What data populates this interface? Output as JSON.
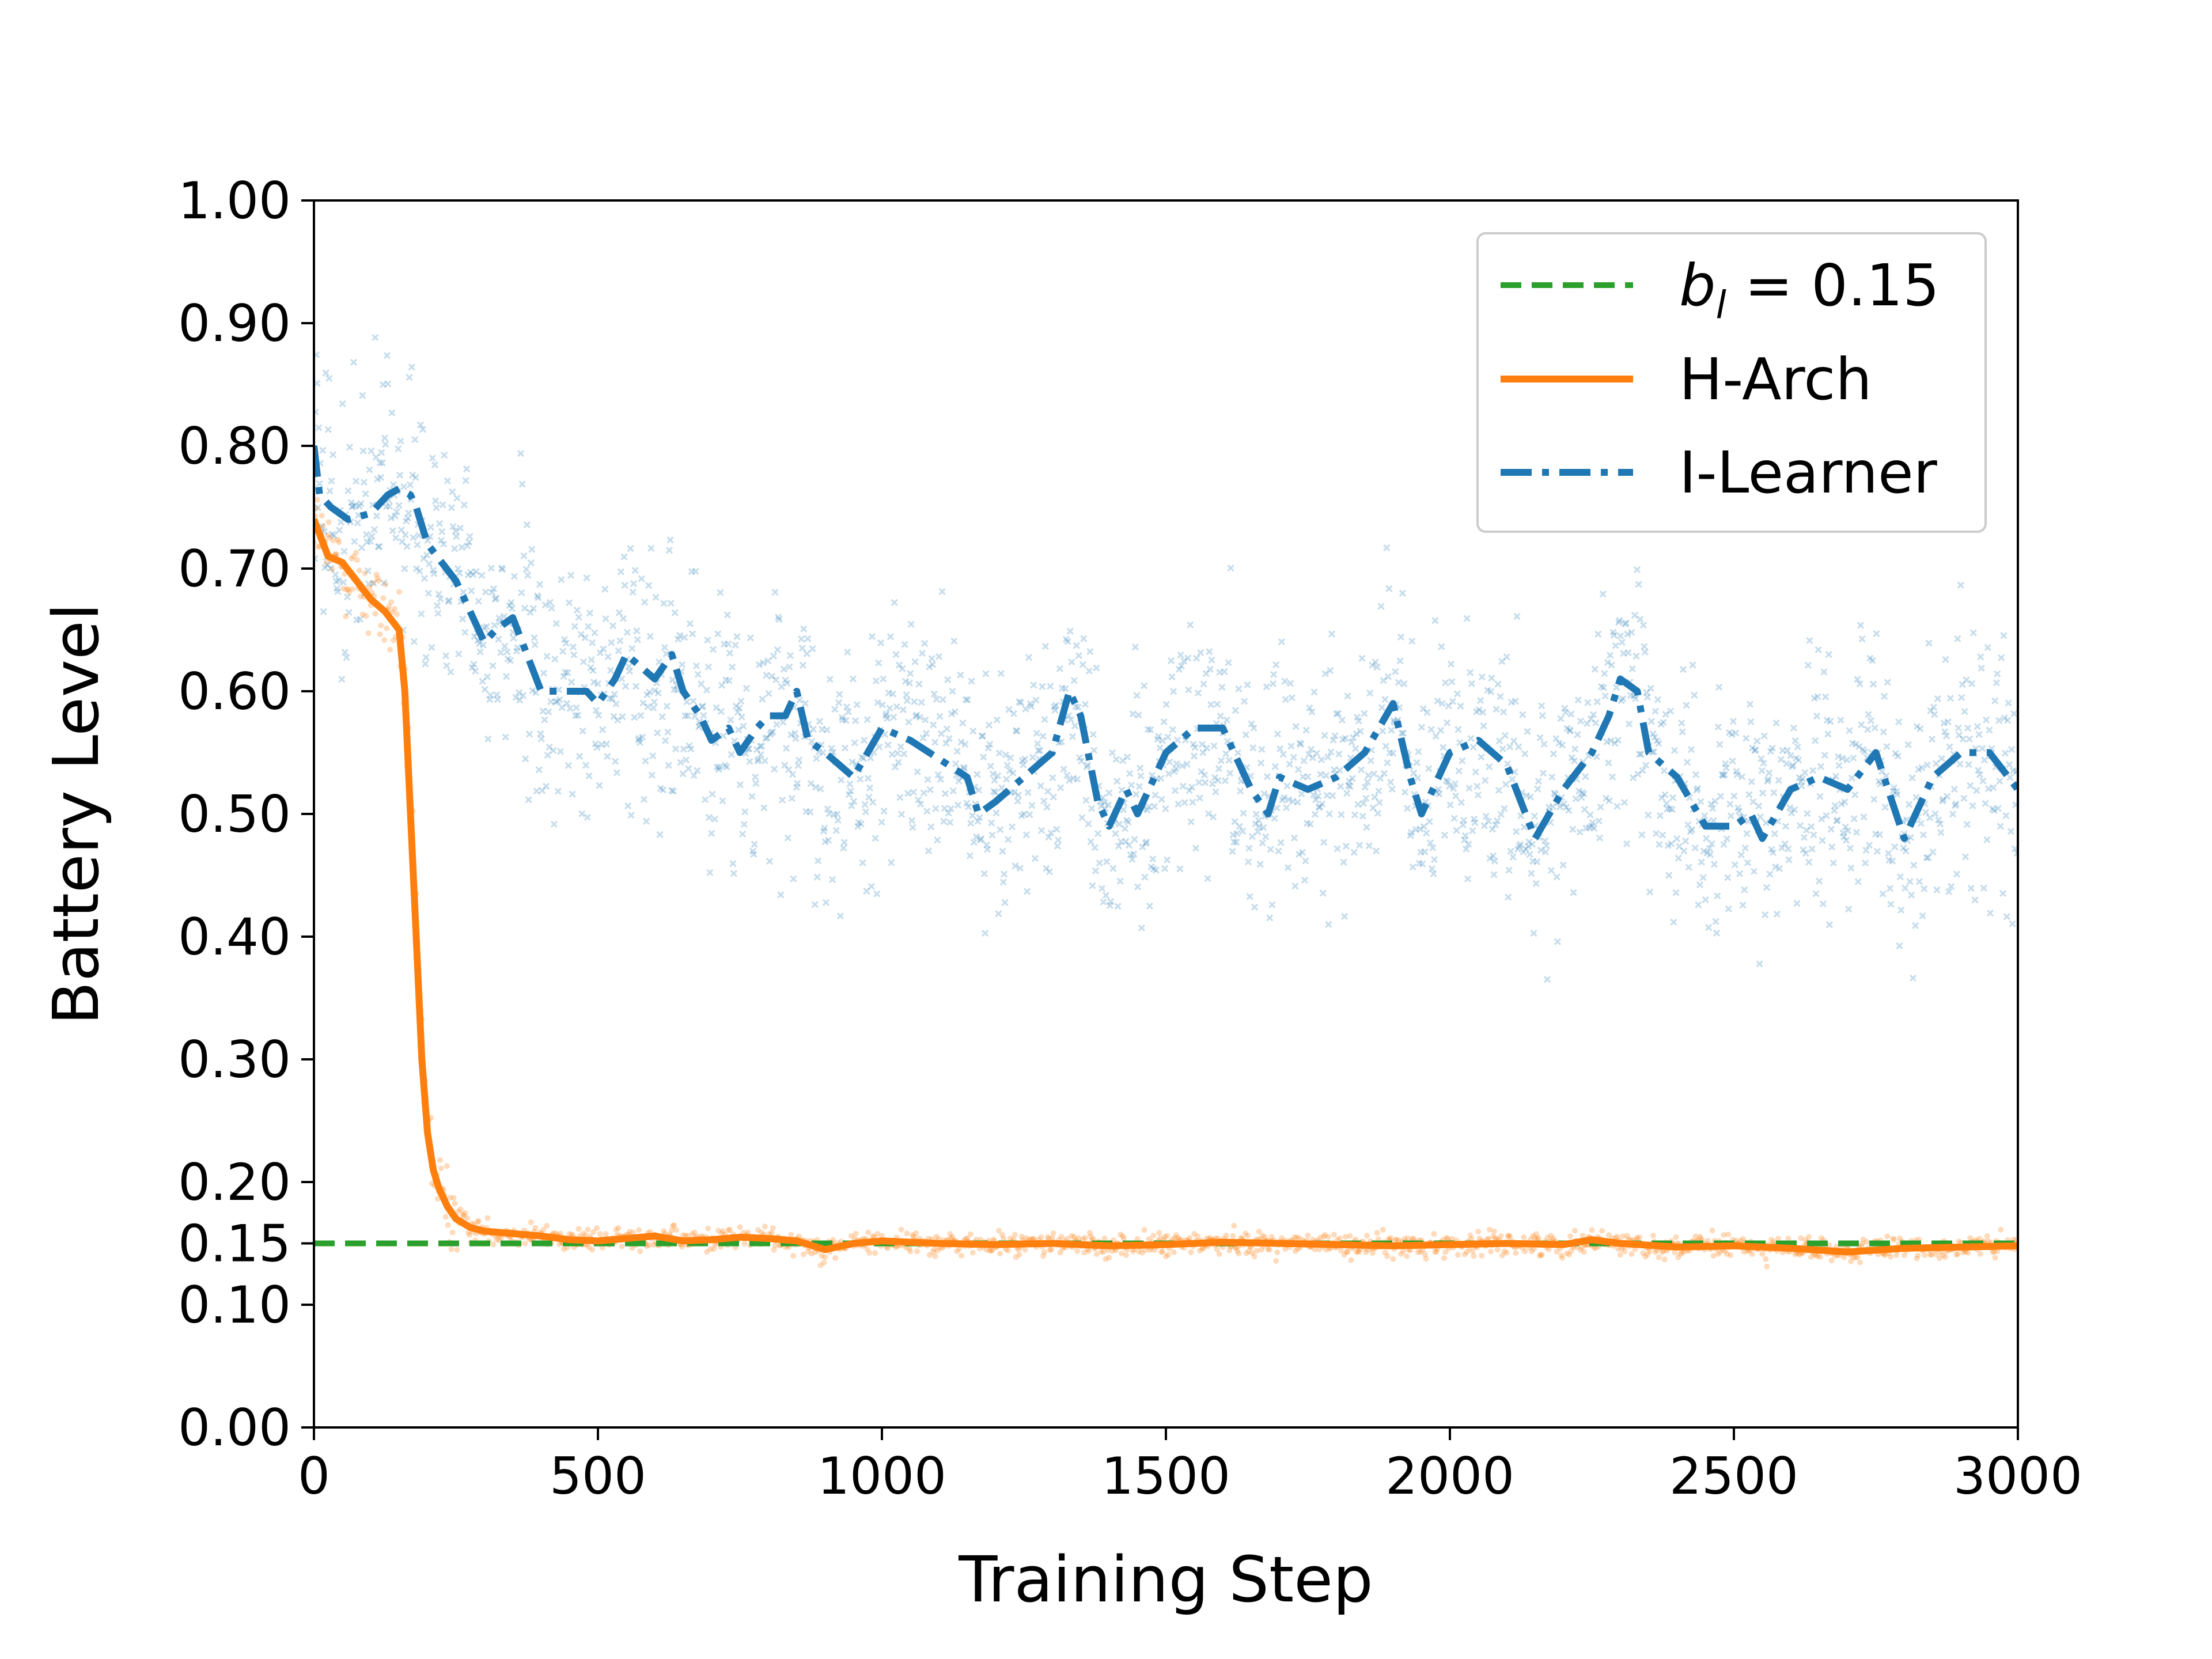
{
  "chart_data": {
    "type": "line",
    "title": "",
    "xlabel": "Training Step",
    "ylabel": "Battery Level",
    "xlim": [
      0,
      3000
    ],
    "ylim": [
      0,
      1.0
    ],
    "xticks": [
      0,
      500,
      1000,
      1500,
      2000,
      2500,
      3000
    ],
    "xtick_labels": [
      "0",
      "500",
      "1000",
      "1500",
      "2000",
      "2500",
      "3000"
    ],
    "yticks": [
      0.0,
      0.1,
      0.15,
      0.2,
      0.3,
      0.4,
      0.5,
      0.6,
      0.7,
      0.8,
      0.9,
      1.0
    ],
    "ytick_labels": [
      "0.00",
      "0.10",
      "0.15",
      "0.20",
      "0.30",
      "0.40",
      "0.50",
      "0.60",
      "0.70",
      "0.80",
      "0.90",
      "1.00"
    ],
    "legend_position": "top-right",
    "threshold": {
      "name": "b_l = 0.15",
      "label_main": "b",
      "label_sub": "l",
      "label_rest": " = 0.15",
      "value": 0.15,
      "color": "#2ca02c",
      "style": "dashed"
    },
    "series": [
      {
        "name": "H-Arch",
        "color": "#ff7f0e",
        "style": "solid",
        "x": [
          0,
          25,
          50,
          75,
          100,
          125,
          150,
          160,
          170,
          180,
          190,
          200,
          210,
          220,
          235,
          250,
          275,
          300,
          350,
          400,
          450,
          500,
          550,
          600,
          650,
          700,
          750,
          800,
          850,
          900,
          950,
          1000,
          1100,
          1200,
          1300,
          1400,
          1500,
          1600,
          1700,
          1800,
          1900,
          2000,
          2100,
          2200,
          2250,
          2300,
          2400,
          2500,
          2600,
          2700,
          2800,
          2900,
          3000
        ],
        "values": [
          0.74,
          0.71,
          0.705,
          0.69,
          0.675,
          0.665,
          0.65,
          0.6,
          0.5,
          0.4,
          0.3,
          0.24,
          0.21,
          0.195,
          0.18,
          0.17,
          0.163,
          0.16,
          0.158,
          0.156,
          0.153,
          0.152,
          0.154,
          0.156,
          0.152,
          0.153,
          0.155,
          0.154,
          0.152,
          0.145,
          0.15,
          0.152,
          0.15,
          0.149,
          0.15,
          0.148,
          0.149,
          0.151,
          0.15,
          0.149,
          0.148,
          0.149,
          0.15,
          0.149,
          0.153,
          0.15,
          0.147,
          0.148,
          0.146,
          0.143,
          0.146,
          0.147,
          0.148
        ]
      },
      {
        "name": "I-Learner",
        "color": "#1f77b4",
        "style": "dashdot",
        "x": [
          0,
          10,
          30,
          60,
          100,
          130,
          150,
          170,
          180,
          200,
          250,
          300,
          320,
          350,
          400,
          450,
          480,
          500,
          530,
          550,
          600,
          630,
          650,
          680,
          700,
          730,
          750,
          780,
          800,
          830,
          850,
          870,
          900,
          950,
          1000,
          1050,
          1100,
          1150,
          1170,
          1200,
          1250,
          1300,
          1330,
          1350,
          1380,
          1400,
          1430,
          1450,
          1480,
          1500,
          1550,
          1600,
          1650,
          1680,
          1700,
          1750,
          1800,
          1850,
          1900,
          1930,
          1950,
          2000,
          2050,
          2100,
          2150,
          2200,
          2250,
          2280,
          2300,
          2330,
          2350,
          2400,
          2450,
          2500,
          2530,
          2550,
          2600,
          2650,
          2700,
          2750,
          2800,
          2850,
          2900,
          2950,
          3000
        ],
        "values": [
          0.8,
          0.76,
          0.75,
          0.74,
          0.745,
          0.76,
          0.765,
          0.76,
          0.75,
          0.72,
          0.69,
          0.64,
          0.65,
          0.66,
          0.6,
          0.6,
          0.6,
          0.59,
          0.61,
          0.63,
          0.61,
          0.63,
          0.6,
          0.58,
          0.56,
          0.57,
          0.55,
          0.57,
          0.58,
          0.58,
          0.6,
          0.56,
          0.55,
          0.53,
          0.57,
          0.56,
          0.545,
          0.53,
          0.5,
          0.51,
          0.53,
          0.55,
          0.6,
          0.58,
          0.51,
          0.49,
          0.52,
          0.5,
          0.53,
          0.55,
          0.57,
          0.57,
          0.52,
          0.5,
          0.53,
          0.52,
          0.53,
          0.55,
          0.59,
          0.53,
          0.5,
          0.55,
          0.56,
          0.54,
          0.48,
          0.52,
          0.55,
          0.58,
          0.61,
          0.6,
          0.55,
          0.53,
          0.49,
          0.49,
          0.5,
          0.48,
          0.52,
          0.53,
          0.52,
          0.55,
          0.48,
          0.53,
          0.55,
          0.55,
          0.52
        ]
      }
    ],
    "scatter": [
      {
        "name": "H-Arch samples",
        "color": "#ff7f0e",
        "marker": "dot",
        "spread_note": "raw per-step battery values around H-Arch curve"
      },
      {
        "name": "I-Learner samples",
        "color": "#1f77b4",
        "marker": "x",
        "spread_note": "raw per-step battery values around I-Learner curve"
      }
    ]
  }
}
